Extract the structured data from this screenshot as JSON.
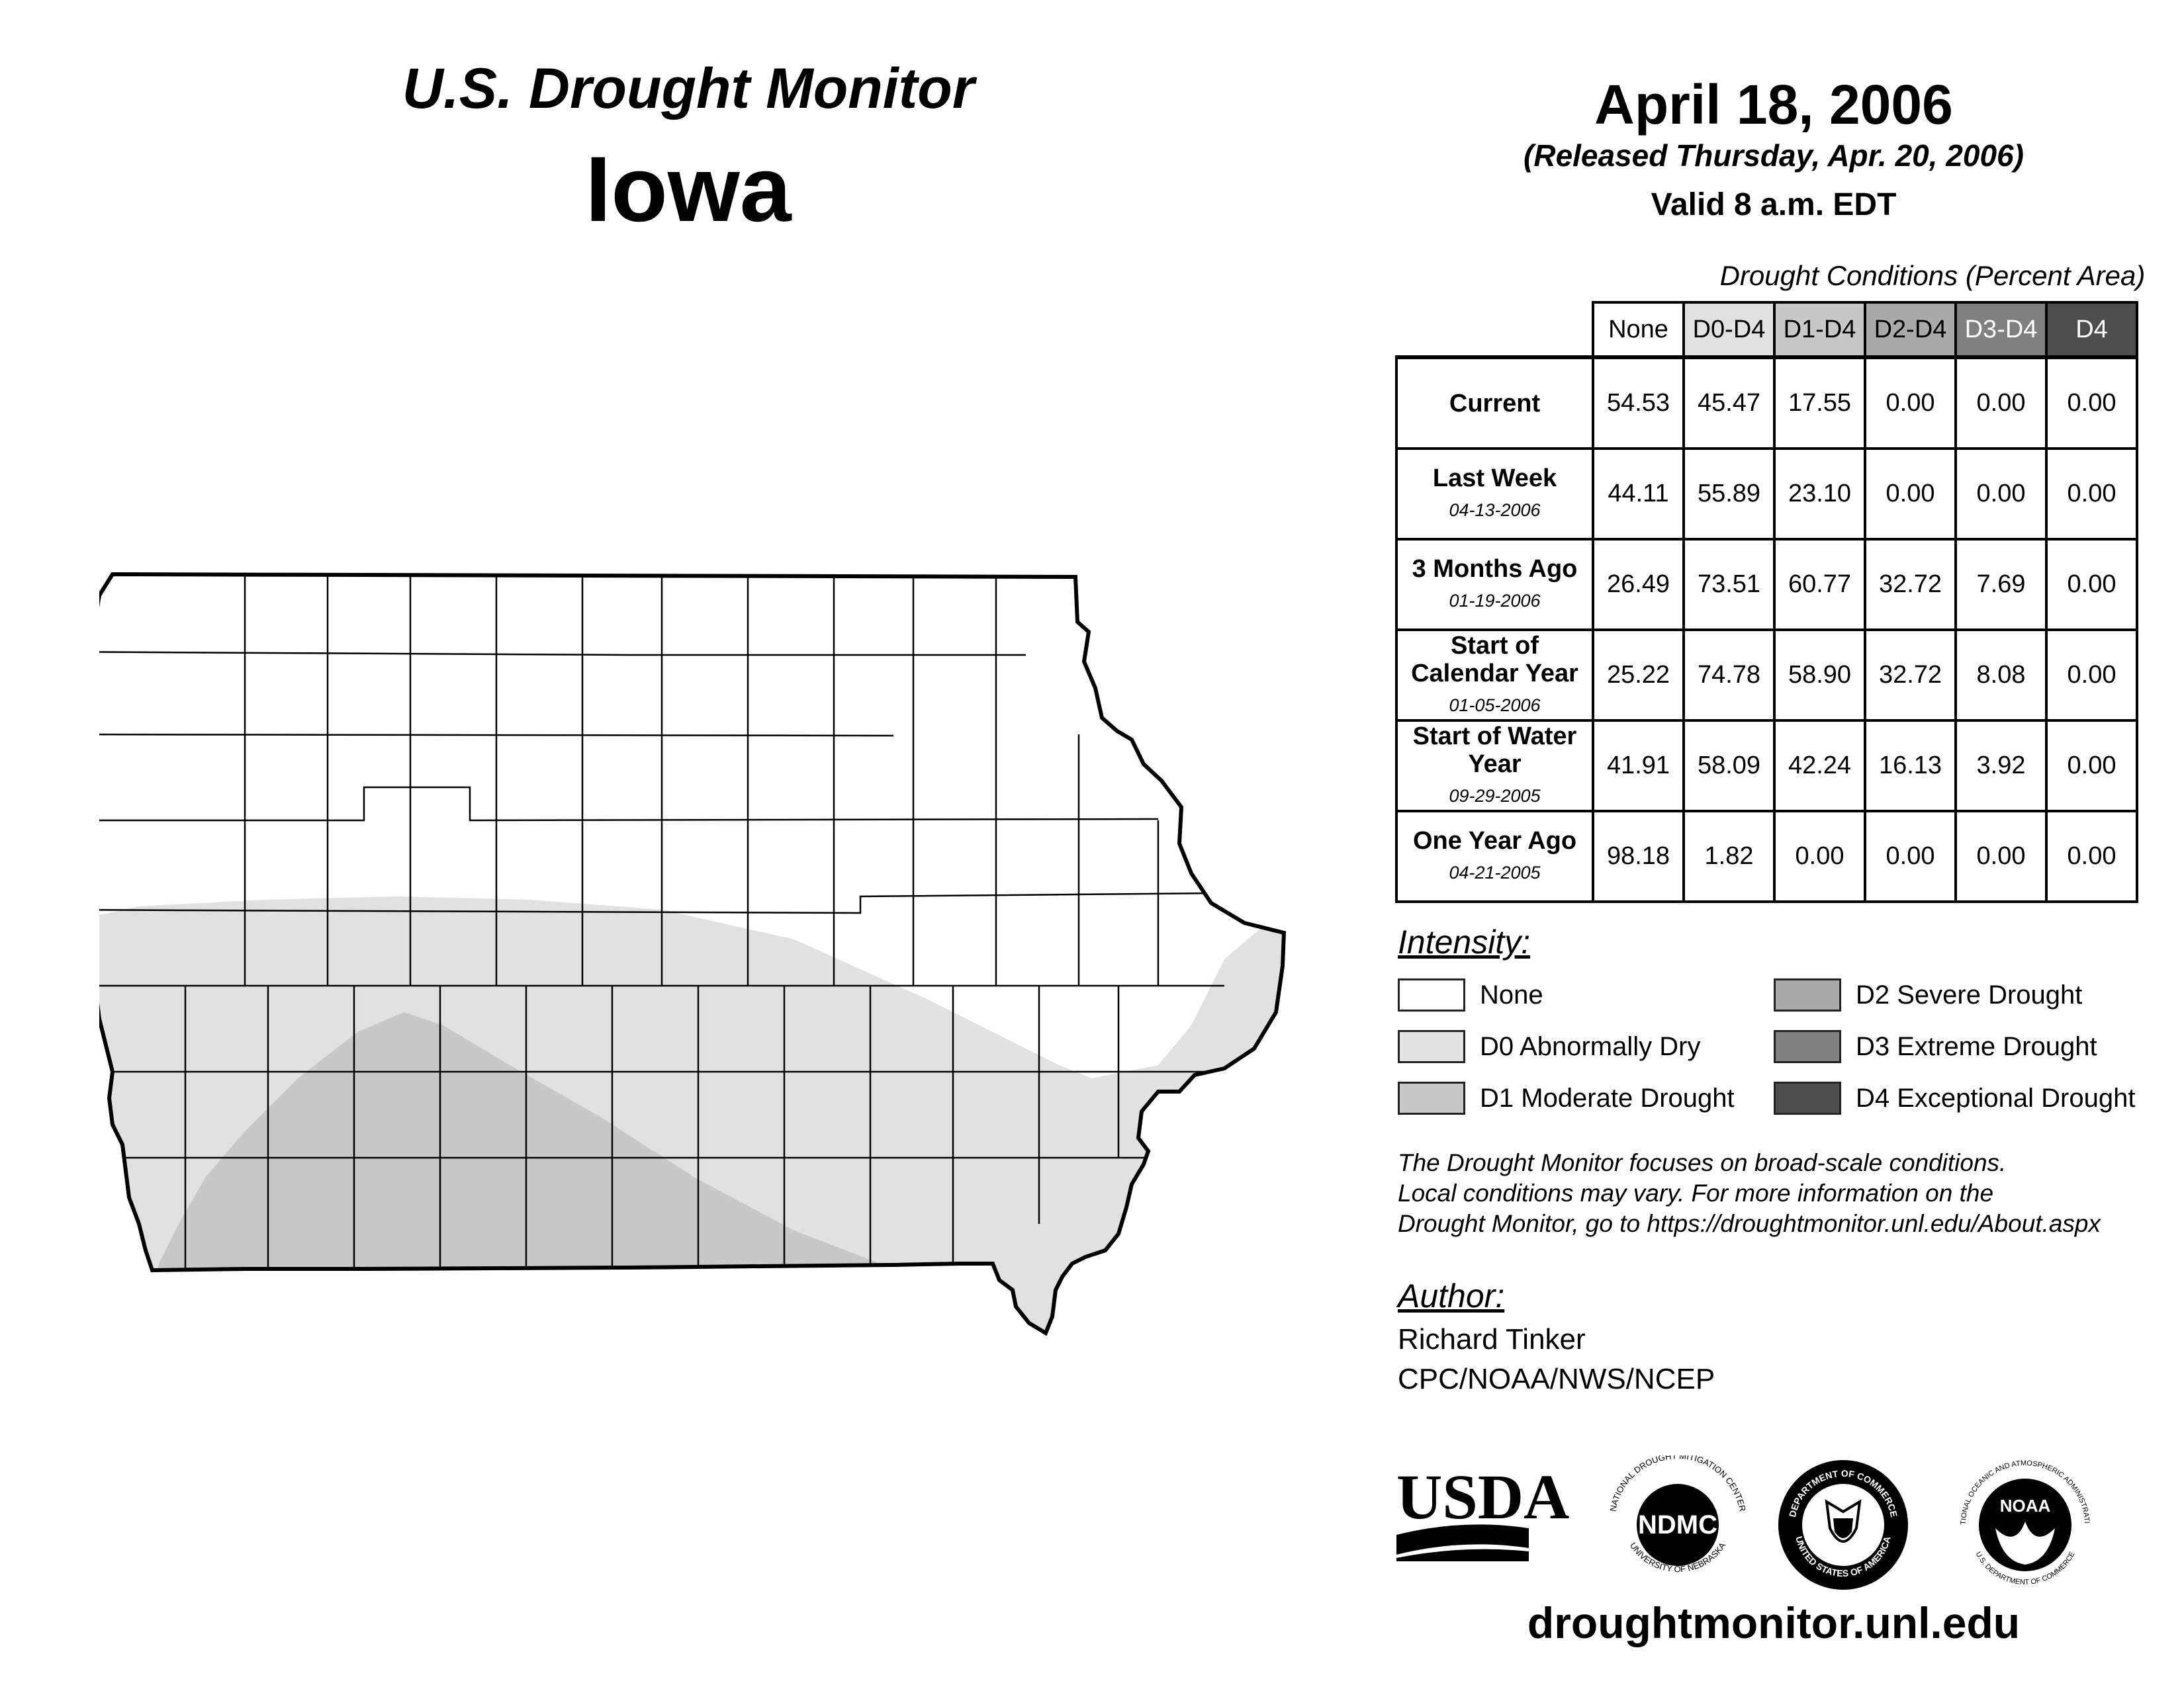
{
  "header": {
    "line1": "U.S. Drought Monitor",
    "line2": "Iowa"
  },
  "date_block": {
    "date": "April 18, 2006",
    "released": "(Released Thursday, Apr. 20, 2006)",
    "valid": "Valid 8 a.m. EDT"
  },
  "table": {
    "caption": "Drought Conditions (Percent Area)",
    "columns": [
      "None",
      "D0-D4",
      "D1-D4",
      "D2-D4",
      "D3-D4",
      "D4"
    ],
    "rows": [
      {
        "label": "Current",
        "date": "",
        "values": [
          "54.53",
          "45.47",
          "17.55",
          "0.00",
          "0.00",
          "0.00"
        ]
      },
      {
        "label": "Last Week",
        "date": "04-13-2006",
        "values": [
          "44.11",
          "55.89",
          "23.10",
          "0.00",
          "0.00",
          "0.00"
        ]
      },
      {
        "label": "3 Months Ago",
        "date": "01-19-2006",
        "values": [
          "26.49",
          "73.51",
          "60.77",
          "32.72",
          "7.69",
          "0.00"
        ]
      },
      {
        "label": "Start of Calendar Year",
        "date": "01-05-2006",
        "values": [
          "25.22",
          "74.78",
          "58.90",
          "32.72",
          "8.08",
          "0.00"
        ]
      },
      {
        "label": "Start of Water Year",
        "date": "09-29-2005",
        "values": [
          "41.91",
          "58.09",
          "42.24",
          "16.13",
          "3.92",
          "0.00"
        ]
      },
      {
        "label": "One Year Ago",
        "date": "04-21-2005",
        "values": [
          "98.18",
          "1.82",
          "0.00",
          "0.00",
          "0.00",
          "0.00"
        ]
      }
    ]
  },
  "legend": {
    "heading": "Intensity:",
    "items": [
      {
        "label": "None",
        "color": "#ffffff"
      },
      {
        "label": "D0 Abnormally Dry",
        "color": "#e1e1e1"
      },
      {
        "label": "D1 Moderate Drought",
        "color": "#c8c8c8"
      },
      {
        "label": "D2 Severe Drought",
        "color": "#aaaaaa"
      },
      {
        "label": "D3 Extreme Drought",
        "color": "#808080"
      },
      {
        "label": "D4 Exceptional Drought",
        "color": "#4d4d4d"
      }
    ]
  },
  "footnote": {
    "line1": "The Drought Monitor focuses on broad-scale conditions.",
    "line2": "Local conditions may vary. For more information on the",
    "line3": "Drought Monitor, go to https://droughtmonitor.unl.edu/About.aspx"
  },
  "author": {
    "heading": "Author:",
    "name": "Richard Tinker",
    "org": "CPC/NOAA/NWS/NCEP"
  },
  "logos": {
    "usda": "USDA",
    "ndmc_abbrev": "NDMC",
    "ndmc_ring_top": "NATIONAL DROUGHT MITIGATION CENTER",
    "ndmc_ring_bottom": "UNIVERSITY OF NEBRASKA",
    "doc_ring_top": "DEPARTMENT OF COMMERCE",
    "doc_ring_bottom": "UNITED STATES OF AMERICA",
    "noaa_abbrev": "NOAA",
    "noaa_ring_top": "NATIONAL OCEANIC AND ATMOSPHERIC ADMINISTRATION",
    "noaa_ring_bottom": "U.S. DEPARTMENT OF COMMERCE"
  },
  "website": "droughtmonitor.unl.edu"
}
